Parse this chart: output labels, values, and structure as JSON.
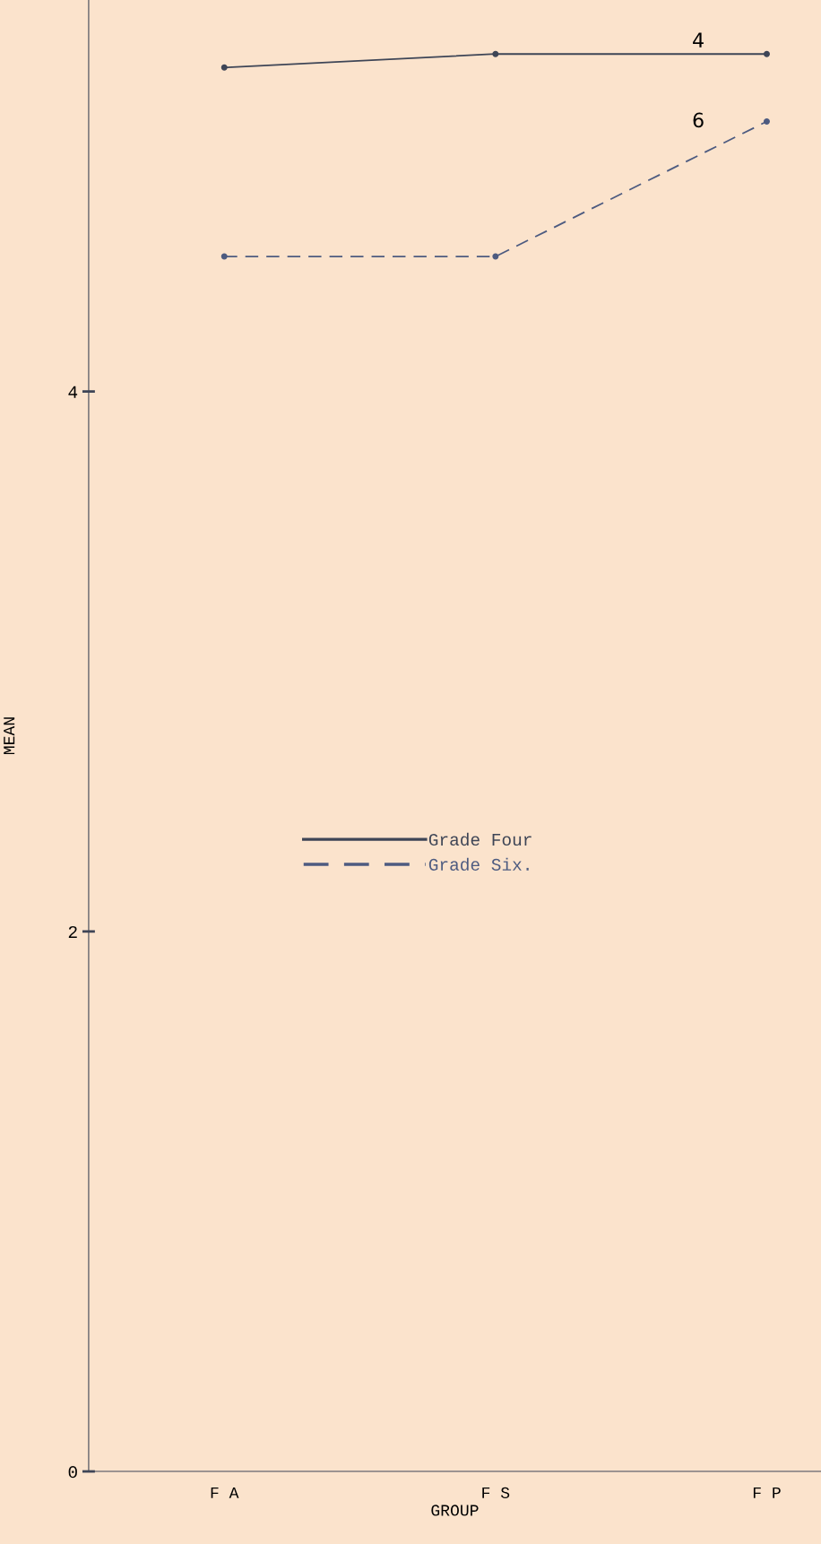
{
  "chart_data": {
    "type": "line",
    "xlabel": "GROUP",
    "ylabel": "MEAN",
    "categories": [
      "F A",
      "F S",
      "F P"
    ],
    "series": [
      {
        "name": "Grade Four",
        "color": "#3e4556",
        "values": [
          5.2,
          5.25,
          5.25
        ],
        "line_style": "solid"
      },
      {
        "name": "Grade Six.",
        "color": "#4d5b80",
        "values": [
          4.5,
          4.5,
          5.0
        ],
        "line_style": "dashed"
      }
    ],
    "ylim": [
      0,
      5.45
    ],
    "yticks": [
      0,
      2,
      4
    ],
    "marker": "circle",
    "legend": "center",
    "grid": false,
    "annotations": [
      "4",
      "6"
    ]
  }
}
